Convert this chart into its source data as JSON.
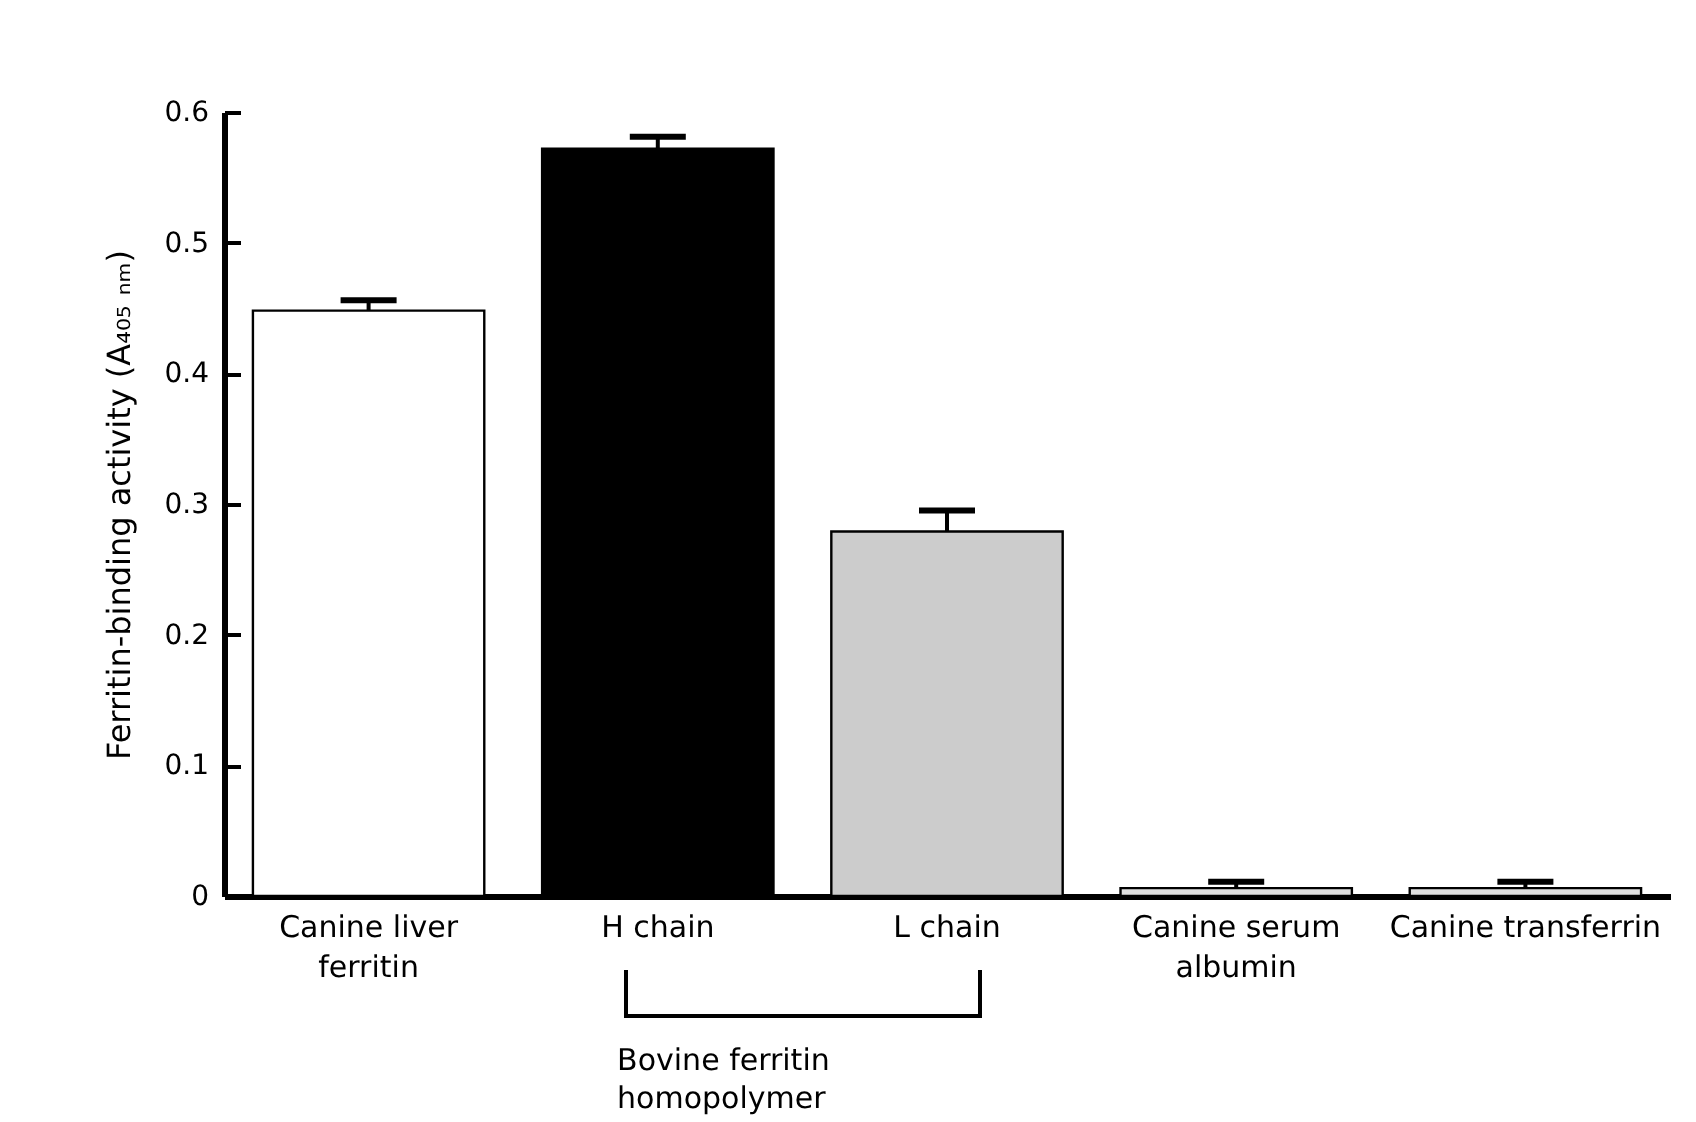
{
  "chart_data": {
    "type": "bar",
    "ylabel": "Ferritin-binding activity (A₄₀₅ ₙₘ)",
    "categories": [
      "Canine liver ferritin",
      "H chain",
      "L chain",
      "Canine serum albumin",
      "Canine transferrin"
    ],
    "values": [
      0.448,
      0.572,
      0.279,
      0.006,
      0.006
    ],
    "errors": [
      [
        0.448,
        0.456
      ],
      [
        0.572,
        0.581
      ],
      [
        0.279,
        0.295
      ],
      [
        0.006,
        0.011
      ],
      [
        0.006,
        0.011
      ]
    ],
    "colors": [
      "#ffffff",
      "#000000",
      "#cccccc",
      "#e0e0e0",
      "#e0e0e0"
    ],
    "ylim": [
      0,
      0.6
    ],
    "yticks": [
      0,
      0.1,
      0.2,
      0.3,
      0.4,
      0.5,
      0.6
    ],
    "annotations": [
      "Bovine ferritin homopolymer"
    ],
    "grid": false,
    "legend": false
  }
}
